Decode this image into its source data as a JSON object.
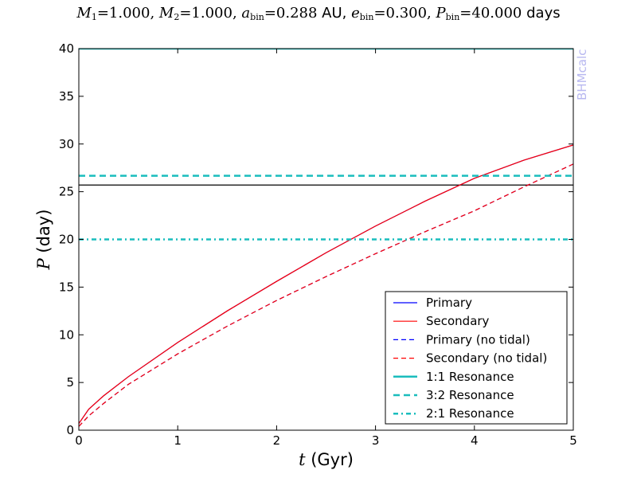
{
  "title_parts": {
    "m1_label": "M",
    "m1_sub": "1",
    "m1_val": "=1.000,",
    "m2_label": "M",
    "m2_sub": "2",
    "m2_val": "=1.000,",
    "a_label": "a",
    "a_sub": "bin",
    "a_val": "=0.288",
    "a_unit": "AU,",
    "e_label": "e",
    "e_sub": "bin",
    "e_val": "=0.300,",
    "p_label": "P",
    "p_sub": "bin",
    "p_val": "=40.000",
    "p_unit": "days"
  },
  "watermark": "BHMcalc",
  "chart_data": {
    "type": "line",
    "title": "M1=1.000, M2=1.000, abin=0.288 AU, ebin=0.300, Pbin=40.000 days",
    "xlabel_var": "t",
    "xlabel_unit": "(Gyr)",
    "ylabel_var": "P",
    "ylabel_unit": "(day)",
    "xlim": [
      0,
      5
    ],
    "ylim": [
      0,
      40
    ],
    "xticks": [
      0,
      1,
      2,
      3,
      4,
      5
    ],
    "yticks": [
      0,
      5,
      10,
      15,
      20,
      25,
      30,
      35,
      40
    ],
    "legend_position": "lower-right",
    "colors": {
      "primary": "#0000ff",
      "secondary": "#ff0000",
      "resonance": "#1abdbd",
      "critical_line": "#000000"
    },
    "series": [
      {
        "name": "Primary",
        "style": "solid",
        "color": "#0000ff",
        "x": [
          0,
          0.1,
          0.25,
          0.5,
          1,
          1.5,
          2,
          2.5,
          3,
          3.5,
          4,
          4.5,
          5
        ],
        "y": [
          0.7,
          2.2,
          3.6,
          5.6,
          9.2,
          12.5,
          15.6,
          18.6,
          21.4,
          24.0,
          26.4,
          28.3,
          29.9
        ]
      },
      {
        "name": "Secondary",
        "style": "solid",
        "color": "#ff0000",
        "x": [
          0,
          0.1,
          0.25,
          0.5,
          1,
          1.5,
          2,
          2.5,
          3,
          3.5,
          4,
          4.5,
          5
        ],
        "y": [
          0.7,
          2.2,
          3.6,
          5.6,
          9.2,
          12.5,
          15.6,
          18.6,
          21.4,
          24.0,
          26.4,
          28.3,
          29.9
        ]
      },
      {
        "name": "Primary (no tidal)",
        "style": "dashed",
        "color": "#0000ff",
        "x": [
          0,
          0.1,
          0.25,
          0.5,
          1,
          1.5,
          2,
          2.5,
          3,
          3.5,
          4,
          4.5,
          5
        ],
        "y": [
          0.4,
          1.5,
          2.8,
          4.8,
          8.0,
          10.9,
          13.6,
          16.1,
          18.5,
          20.8,
          23.0,
          25.5,
          27.9
        ]
      },
      {
        "name": "Secondary (no tidal)",
        "style": "dashed",
        "color": "#ff0000",
        "x": [
          0,
          0.1,
          0.25,
          0.5,
          1,
          1.5,
          2,
          2.5,
          3,
          3.5,
          4,
          4.5,
          5
        ],
        "y": [
          0.4,
          1.5,
          2.8,
          4.8,
          8.0,
          10.9,
          13.6,
          16.1,
          18.5,
          20.8,
          23.0,
          25.5,
          27.9
        ]
      },
      {
        "name": "1:1 Resonance",
        "style": "solid-thick",
        "color": "#1abdbd",
        "hline": 40.0
      },
      {
        "name": "3:2 Resonance",
        "style": "dashed-thick",
        "color": "#1abdbd",
        "hline": 26.67
      },
      {
        "name": "2:1 Resonance",
        "style": "dashdot-thick",
        "color": "#1abdbd",
        "hline": 20.0
      }
    ],
    "critical_period_line": 25.7
  }
}
